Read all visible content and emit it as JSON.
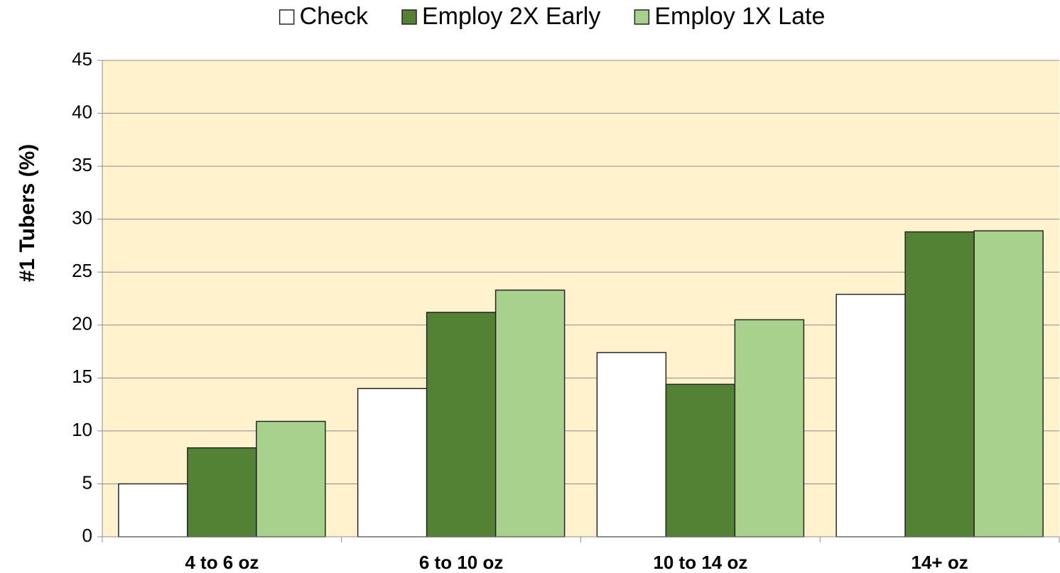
{
  "chart_data": {
    "type": "bar",
    "y_label": "#1 Tubers (%)",
    "categories": [
      "4 to 6 oz",
      "6 to 10 oz",
      "10 to 14 oz",
      "14+ oz"
    ],
    "series": [
      {
        "name": "Check",
        "color": "#ffffff",
        "values": [
          5.0,
          14.0,
          17.4,
          22.9
        ]
      },
      {
        "name": "Employ 2X Early",
        "color": "#548235",
        "values": [
          8.4,
          21.2,
          14.4,
          28.8
        ]
      },
      {
        "name": "Employ 1X Late",
        "color": "#a9d18e",
        "values": [
          10.9,
          23.3,
          20.5,
          28.9
        ]
      }
    ],
    "ylim": [
      0,
      45
    ],
    "yticks": [
      0,
      5,
      10,
      15,
      20,
      25,
      30,
      35,
      40,
      45
    ],
    "grid": true,
    "legend": "top",
    "plot_background": "#fff2cc"
  }
}
